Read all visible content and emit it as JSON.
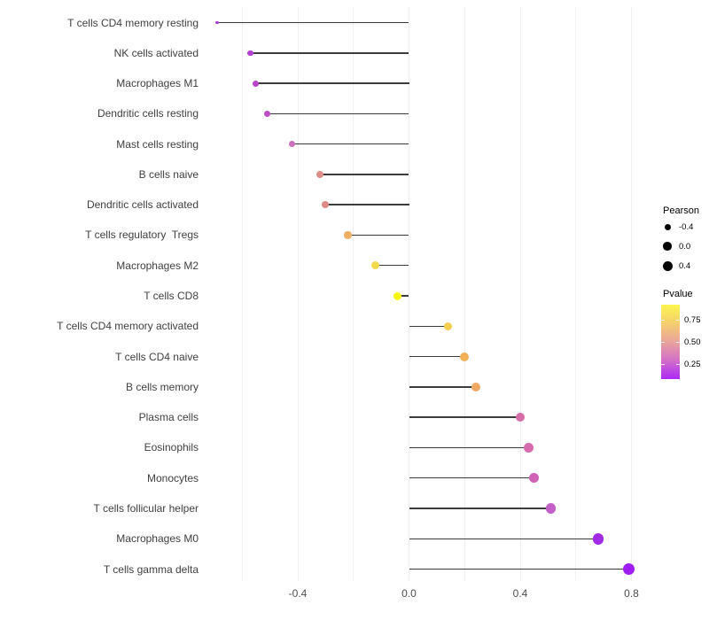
{
  "chart_data": {
    "type": "lollipop",
    "orientation": "horizontal",
    "title": "",
    "xlabel": "",
    "ylabel": "",
    "x_ticks": {
      "values": [
        -0.4,
        0.0,
        0.4,
        0.8
      ],
      "labels": [
        "-0.4",
        "0.0",
        "0.4",
        "0.8"
      ]
    },
    "gridline_values": [
      -0.6,
      -0.4,
      -0.2,
      0.0,
      0.2,
      0.4,
      0.6,
      0.8
    ],
    "xlim": [
      -0.73,
      0.83
    ],
    "baseline_value": 0.0,
    "points": [
      {
        "category": "T cells CD4 memory resting",
        "pearson": -0.69,
        "color": "#A93BD8",
        "size": 3.5
      },
      {
        "category": "NK cells activated",
        "pearson": -0.57,
        "color": "#B240D2",
        "size": 6.5
      },
      {
        "category": "Macrophages M1",
        "pearson": -0.55,
        "color": "#B845C9",
        "size": 7
      },
      {
        "category": "Dendritic cells resting",
        "pearson": -0.51,
        "color": "#BF4CC5",
        "size": 7
      },
      {
        "category": "Mast cells resting",
        "pearson": -0.42,
        "color": "#CC70BB",
        "size": 7.5
      },
      {
        "category": "B cells naive",
        "pearson": -0.32,
        "color": "#DD8E89",
        "size": 8
      },
      {
        "category": "Dendritic cells activated",
        "pearson": -0.3,
        "color": "#DC8A84",
        "size": 8
      },
      {
        "category": "T cells regulatory  Tregs",
        "pearson": -0.22,
        "color": "#EFAE63",
        "size": 8.5
      },
      {
        "category": "Macrophages M2",
        "pearson": -0.12,
        "color": "#F2DA4D",
        "size": 9
      },
      {
        "category": "T cells CD8",
        "pearson": -0.04,
        "color": "#F8F414",
        "size": 9
      },
      {
        "category": "T cells CD4 memory activated",
        "pearson": 0.14,
        "color": "#F2CC4C",
        "size": 9.5
      },
      {
        "category": "T cells CD4 naive",
        "pearson": 0.2,
        "color": "#EFB057",
        "size": 10
      },
      {
        "category": "B cells memory",
        "pearson": 0.24,
        "color": "#EDA862",
        "size": 10
      },
      {
        "category": "Plasma cells",
        "pearson": 0.4,
        "color": "#D76CA8",
        "size": 10.5
      },
      {
        "category": "Eosinophils",
        "pearson": 0.43,
        "color": "#D66BAD",
        "size": 11
      },
      {
        "category": "Monocytes",
        "pearson": 0.45,
        "color": "#CF63B6",
        "size": 11
      },
      {
        "category": "T cells follicular helper",
        "pearson": 0.51,
        "color": "#C55FC8",
        "size": 11.5
      },
      {
        "category": "Macrophages M0",
        "pearson": 0.68,
        "color": "#A22BE6",
        "size": 12.5
      },
      {
        "category": "T cells gamma delta",
        "pearson": 0.79,
        "color": "#9E1DF0",
        "size": 13
      }
    ]
  },
  "legend": {
    "size_legend": {
      "title": "Pearson",
      "dot_color": "#000000",
      "items": [
        {
          "label": "-0.4",
          "diameter": 7
        },
        {
          "label": "0.0",
          "diameter": 9.5
        },
        {
          "label": "0.4",
          "diameter": 11
        }
      ]
    },
    "color_legend": {
      "title": "Pvalue",
      "tick_labels": [
        "0.75",
        "0.50",
        "0.25"
      ],
      "gradient_top_to_bottom": [
        "#FBF64F",
        "#F6CE6E",
        "#E9A39C",
        "#D26FC9",
        "#AB28F5"
      ]
    }
  },
  "colors": {
    "gridline": "#EFEFEF",
    "stem": "#3C3C3C",
    "axis_text": "#404040"
  }
}
